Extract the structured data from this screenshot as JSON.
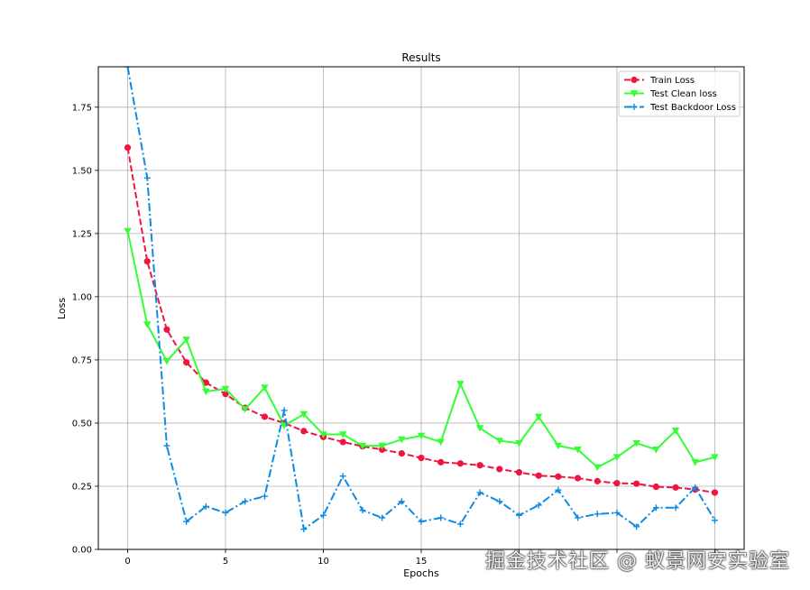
{
  "chart_data": {
    "type": "line",
    "title": "Results",
    "xlabel": "Epochs",
    "ylabel": "Loss",
    "xlim": [
      -1.5,
      31.5
    ],
    "ylim": [
      0,
      1.91
    ],
    "x_ticks": [
      0,
      5,
      10,
      15,
      20,
      25,
      30
    ],
    "x_tick_labels": [
      "0",
      "5",
      "10",
      "15",
      "",
      "",
      ""
    ],
    "y_ticks": [
      0.0,
      0.25,
      0.5,
      0.75,
      1.0,
      1.25,
      1.5,
      1.75
    ],
    "y_tick_labels": [
      "0.00",
      "0.25",
      "0.50",
      "0.75",
      "1.00",
      "1.25",
      "1.50",
      "1.75"
    ],
    "grid": true,
    "legend_position": "top-right",
    "x": [
      0,
      1,
      2,
      3,
      4,
      5,
      6,
      7,
      8,
      9,
      10,
      11,
      12,
      13,
      14,
      15,
      16,
      17,
      18,
      19,
      20,
      21,
      22,
      23,
      24,
      25,
      26,
      27,
      28,
      29,
      30
    ],
    "series": [
      {
        "name": "Train Loss",
        "color": "#ee1541",
        "marker": "circle",
        "line_style": "dashed",
        "values": [
          1.59,
          1.14,
          0.87,
          0.74,
          0.66,
          0.615,
          0.56,
          0.525,
          0.5,
          0.468,
          0.445,
          0.425,
          0.408,
          0.395,
          0.38,
          0.362,
          0.345,
          0.34,
          0.333,
          0.318,
          0.305,
          0.292,
          0.288,
          0.282,
          0.27,
          0.262,
          0.26,
          0.248,
          0.245,
          0.237,
          0.225
        ]
      },
      {
        "name": "Test Clean loss",
        "color": "#33ff33",
        "marker": "triangle-down",
        "line_style": "solid",
        "values": [
          1.26,
          0.89,
          0.745,
          0.83,
          0.625,
          0.635,
          0.555,
          0.64,
          0.49,
          0.535,
          0.455,
          0.455,
          0.41,
          0.41,
          0.435,
          0.45,
          0.425,
          0.655,
          0.48,
          0.43,
          0.42,
          0.525,
          0.41,
          0.395,
          0.325,
          0.365,
          0.42,
          0.395,
          0.47,
          0.345,
          0.365
        ]
      },
      {
        "name": "Test Backdoor Loss",
        "color": "#0d8be3",
        "marker": "plus",
        "line_style": "dashdot",
        "values": [
          1.91,
          1.47,
          0.41,
          0.11,
          0.17,
          0.145,
          0.19,
          0.21,
          0.55,
          0.08,
          0.135,
          0.29,
          0.155,
          0.125,
          0.19,
          0.11,
          0.125,
          0.1,
          0.225,
          0.19,
          0.135,
          0.175,
          0.235,
          0.125,
          0.14,
          0.145,
          0.09,
          0.165,
          0.165,
          0.245,
          0.115
        ]
      }
    ]
  },
  "watermark": "掘金技术社区 @ 蚁景网安实验室"
}
